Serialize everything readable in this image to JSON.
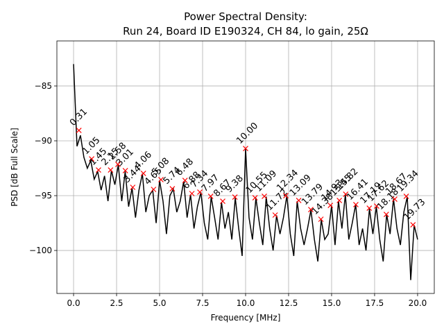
{
  "chart_data": {
    "type": "line",
    "title": "Power Spectral Density:",
    "subtitle": "Run 24, Board ID E190324, CH 84, lo gain, 25Ω",
    "x_label": "Frequency [MHz]",
    "y_label": "PSD [dB Full Scale]",
    "xlim": [
      -0.97,
      20.97
    ],
    "ylim": [
      -103.92,
      -80.89
    ],
    "xticks": [
      {
        "value": 0,
        "label": "0.0"
      },
      {
        "value": 2.5,
        "label": "2.5"
      },
      {
        "value": 5,
        "label": "5.0"
      },
      {
        "value": 7.5,
        "label": "7.5"
      },
      {
        "value": 10,
        "label": "10.0"
      },
      {
        "value": 12.5,
        "label": "12.5"
      },
      {
        "value": 15,
        "label": "15.0"
      },
      {
        "value": 17.5,
        "label": "17.5"
      },
      {
        "value": 20,
        "label": "20.0"
      }
    ],
    "yticks": [
      {
        "value": -85,
        "label": "−85"
      },
      {
        "value": -90,
        "label": "−90"
      },
      {
        "value": -95,
        "label": "−95"
      },
      {
        "value": -100,
        "label": "−100"
      }
    ],
    "grid": true,
    "series": [
      {
        "color": "#000000",
        "x": [
          0.0,
          0.2,
          0.4,
          0.6,
          0.8,
          1.0,
          1.2,
          1.4,
          1.6,
          1.8,
          2.0,
          2.2,
          2.4,
          2.6,
          2.8,
          3.0,
          3.2,
          3.4,
          3.6,
          3.8,
          4.0,
          4.2,
          4.4,
          4.6,
          4.8,
          5.0,
          5.2,
          5.4,
          5.6,
          5.8,
          6.0,
          6.2,
          6.4,
          6.6,
          6.8,
          7.0,
          7.2,
          7.4,
          7.6,
          7.8,
          8.0,
          8.2,
          8.4,
          8.6,
          8.8,
          9.0,
          9.2,
          9.4,
          9.6,
          9.8,
          10.0,
          10.2,
          10.4,
          10.6,
          10.8,
          11.0,
          11.2,
          11.4,
          11.6,
          11.8,
          12.0,
          12.2,
          12.4,
          12.6,
          12.8,
          13.0,
          13.2,
          13.4,
          13.6,
          13.8,
          14.0,
          14.2,
          14.4,
          14.6,
          14.8,
          15.0,
          15.2,
          15.4,
          15.6,
          15.8,
          16.0,
          16.2,
          16.4,
          16.6,
          16.8,
          17.0,
          17.2,
          17.4,
          17.6,
          17.8,
          18.0,
          18.2,
          18.4,
          18.6,
          18.8,
          19.0,
          19.2,
          19.4,
          19.6,
          19.8,
          20.0
        ],
        "values": [
          -83.0,
          -90.5,
          -89.5,
          -91.5,
          -92.5,
          -91.8,
          -93.5,
          -92.8,
          -94.5,
          -93.2,
          -95.5,
          -92.7,
          -94.0,
          -92.2,
          -95.5,
          -92.8,
          -96.0,
          -94.3,
          -97.0,
          -94.5,
          -93.0,
          -96.5,
          -95.0,
          -94.5,
          -97.5,
          -93.6,
          -95.5,
          -98.5,
          -95.0,
          -94.4,
          -96.5,
          -95.5,
          -93.7,
          -97.0,
          -94.9,
          -98.0,
          -96.0,
          -94.7,
          -97.5,
          -99.0,
          -95.1,
          -97.0,
          -99.0,
          -95.6,
          -98.0,
          -96.5,
          -99.0,
          -95.2,
          -98.0,
          -100.5,
          -90.7,
          -97.0,
          -99.0,
          -95.2,
          -97.5,
          -99.5,
          -95.1,
          -98.0,
          -100.0,
          -96.8,
          -98.5,
          -97.0,
          -95.0,
          -98.5,
          -100.5,
          -95.5,
          -98.0,
          -99.5,
          -98.0,
          -96.3,
          -99.0,
          -101.0,
          -97.2,
          -99.0,
          -98.5,
          -95.9,
          -99.5,
          -95.5,
          -98.0,
          -94.9,
          -99.0,
          -97.5,
          -95.8,
          -99.5,
          -98.0,
          -100.0,
          -96.2,
          -98.5,
          -96.0,
          -99.0,
          -101.0,
          -96.7,
          -98.5,
          -95.3,
          -98.0,
          -99.5,
          -96.5,
          -95.1,
          -102.7,
          -97.7,
          -99.0
        ]
      },
      {
        "color": "#ff0000",
        "marker": "x",
        "x": [
          0.31,
          1.05,
          1.45,
          2.15,
          2.58,
          3.01,
          3.44,
          4.06,
          4.65,
          5.08,
          5.74,
          6.48,
          6.88,
          7.34,
          7.97,
          8.67,
          9.38,
          10.0,
          10.55,
          11.09,
          11.72,
          12.34,
          13.09,
          13.79,
          14.38,
          14.93,
          15.45,
          15.82,
          16.41,
          17.19,
          17.62,
          18.18,
          18.67,
          19.34,
          19.73
        ],
        "values": [
          -89.05,
          -91.65,
          -92.66,
          -92.66,
          -92.15,
          -92.72,
          -94.24,
          -92.97,
          -94.43,
          -93.54,
          -94.37,
          -93.61,
          -94.81,
          -94.68,
          -95.06,
          -95.51,
          -95.13,
          -90.7,
          -95.19,
          -95.06,
          -96.77,
          -95.0,
          -95.44,
          -96.27,
          -97.15,
          -95.89,
          -95.44,
          -94.87,
          -95.82,
          -96.14,
          -95.95,
          -96.71,
          -95.32,
          -95.06,
          -97.66
        ],
        "x_labels": [
          "0.31",
          "1.05",
          "1.45",
          "2.15",
          "2.58",
          "3.01",
          "3.44",
          "4.06",
          "4.65",
          "5.08",
          "5.74",
          "6.48",
          "6.88",
          "7.34",
          "7.97",
          "8.67",
          "9.38",
          "10.00",
          "10.55",
          "11.09",
          "11.72",
          "12.34",
          "13.09",
          "13.79",
          "14.38",
          "14.93",
          "15.45",
          "15.82",
          "16.41",
          "17.19",
          "17.62",
          "18.18",
          "18.67",
          "19.34",
          "19.73"
        ]
      }
    ]
  }
}
